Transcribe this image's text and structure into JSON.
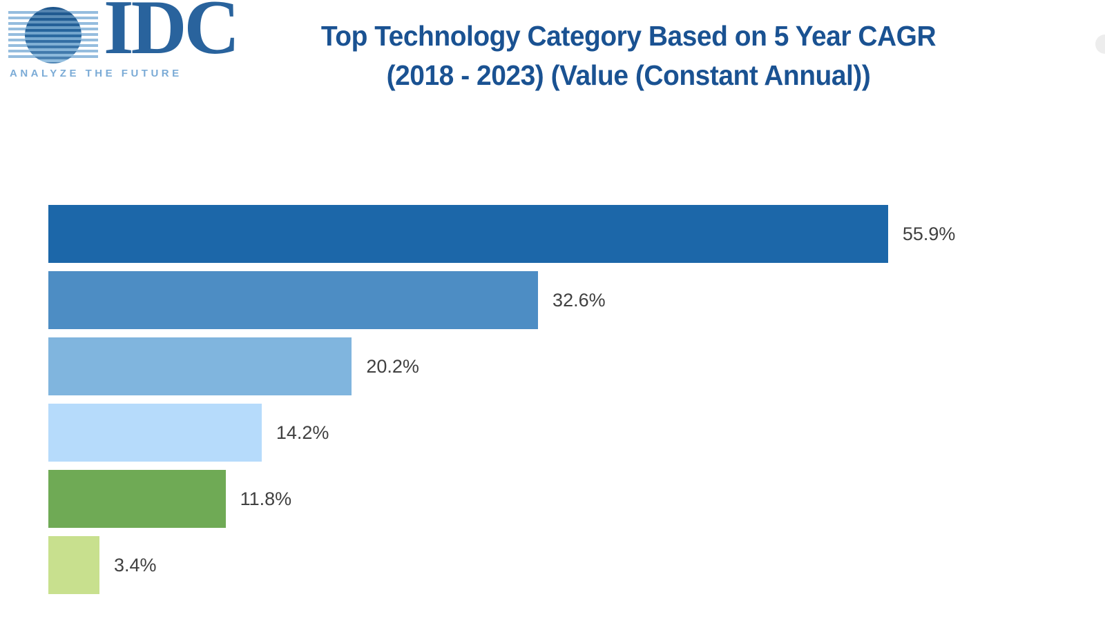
{
  "logo": {
    "name": "IDC",
    "tagline": "ANALYZE THE FUTURE"
  },
  "title": {
    "line1": "Top Technology Category Based on 5 Year CAGR",
    "line2": "(2018 - 2023) (Value (Constant Annual))"
  },
  "chart_data": {
    "type": "bar",
    "orientation": "horizontal",
    "title": "Top Technology Category Based on 5 Year CAGR (2018 - 2023) (Value (Constant Annual))",
    "xlabel": "",
    "ylabel": "",
    "xlim": [
      0,
      60
    ],
    "grid": false,
    "legend": "none",
    "category_axis_labels_visible": false,
    "value_labels_position": "outside-end",
    "bars": [
      {
        "value": 55.9,
        "label": "55.9%",
        "color": "#1c67a9"
      },
      {
        "value": 32.6,
        "label": "32.6%",
        "color": "#4d8dc4"
      },
      {
        "value": 20.2,
        "label": "20.2%",
        "color": "#80b5de"
      },
      {
        "value": 14.2,
        "label": "14.2%",
        "color": "#b6dbfb"
      },
      {
        "value": 11.8,
        "label": "11.8%",
        "color": "#6faa55"
      },
      {
        "value": 3.4,
        "label": "3.4%",
        "color": "#c8e08e"
      }
    ]
  },
  "colors": {
    "title_text": "#1a5292",
    "value_label_text": "#404040",
    "logo_dark_blue": "#29639d",
    "logo_light_blue": "#7babd6"
  }
}
